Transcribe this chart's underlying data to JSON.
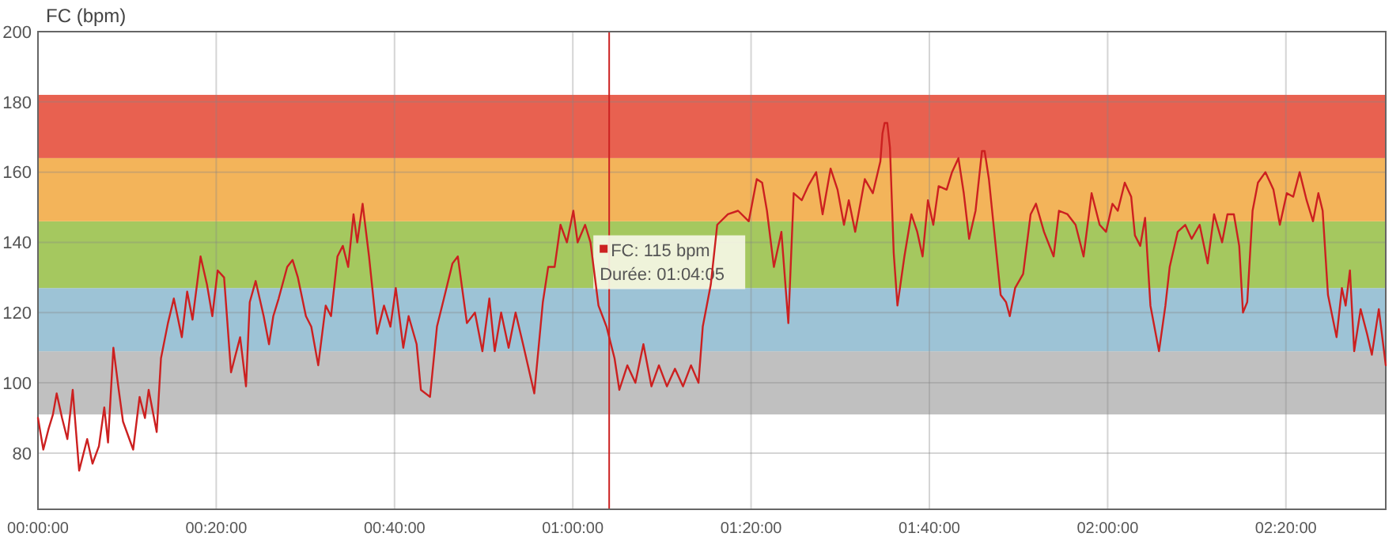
{
  "chart_data": {
    "type": "line",
    "ylabel": "FC (bpm)",
    "xlim": [
      0,
      2.52
    ],
    "ylim": [
      64,
      200
    ],
    "xticks": [
      {
        "value": 0,
        "label": "00:00:00"
      },
      {
        "value": 0.3333,
        "label": "00:20:00"
      },
      {
        "value": 0.6667,
        "label": "00:40:00"
      },
      {
        "value": 1,
        "label": "01:00:00"
      },
      {
        "value": 1.3333,
        "label": "01:20:00"
      },
      {
        "value": 1.6667,
        "label": "01:40:00"
      },
      {
        "value": 2,
        "label": "02:00:00"
      },
      {
        "value": 2.3333,
        "label": "02:20:00"
      }
    ],
    "yticks": [
      80,
      100,
      120,
      140,
      160,
      180,
      200
    ],
    "grid": true,
    "marker": "none",
    "line_style": "solid",
    "bands": [
      {
        "axis": "y",
        "from": 91,
        "to": 109,
        "color": "#c0c0c0"
      },
      {
        "axis": "y",
        "from": 109,
        "to": 127,
        "color": "#9dc3d6"
      },
      {
        "axis": "y",
        "from": 127,
        "to": 146,
        "color": "#a5c85f"
      },
      {
        "axis": "y",
        "from": 146,
        "to": 164,
        "color": "#f3b45a"
      },
      {
        "axis": "y",
        "from": 164,
        "to": 182,
        "color": "#e86150"
      }
    ],
    "ref_lines": [
      {
        "axis": "x",
        "value": 1.068,
        "color": "#cc2222",
        "line_style": "solid"
      }
    ],
    "annotations": [
      "FC: 115 bpm",
      "Durée: 01:04:05"
    ],
    "series": [
      {
        "color": "#cc2020",
        "x": [
          0,
          0.01,
          0.02,
          0.028,
          0.035,
          0.045,
          0.055,
          0.065,
          0.077,
          0.092,
          0.102,
          0.114,
          0.124,
          0.131,
          0.141,
          0.151,
          0.159,
          0.178,
          0.19,
          0.2,
          0.207,
          0.222,
          0.23,
          0.243,
          0.254,
          0.269,
          0.279,
          0.289,
          0.304,
          0.316,
          0.326,
          0.336,
          0.348,
          0.361,
          0.378,
          0.389,
          0.396,
          0.407,
          0.422,
          0.432,
          0.44,
          0.45,
          0.466,
          0.476,
          0.486,
          0.501,
          0.511,
          0.524,
          0.538,
          0.548,
          0.56,
          0.57,
          0.58,
          0.59,
          0.597,
          0.607,
          0.619,
          0.634,
          0.647,
          0.659,
          0.669,
          0.683,
          0.693,
          0.708,
          0.716,
          0.733,
          0.746,
          0.759,
          0.775,
          0.785,
          0.802,
          0.817,
          0.831,
          0.844,
          0.854,
          0.866,
          0.88,
          0.893,
          0.907,
          0.928,
          0.944,
          0.954,
          0.966,
          0.977,
          0.989,
          1.001,
          1.009,
          1.023,
          1.033,
          1.048,
          1.063,
          1.078,
          1.087,
          1.102,
          1.117,
          1.132,
          1.147,
          1.161,
          1.176,
          1.191,
          1.206,
          1.221,
          1.235,
          1.243,
          1.258,
          1.27,
          1.29,
          1.309,
          1.329,
          1.344,
          1.354,
          1.363,
          1.376,
          1.39,
          1.403,
          1.413,
          1.428,
          1.44,
          1.455,
          1.467,
          1.482,
          1.495,
          1.507,
          1.516,
          1.528,
          1.546,
          1.561,
          1.575,
          1.579,
          1.583,
          1.588,
          1.593,
          1.6,
          1.607,
          1.62,
          1.633,
          1.644,
          1.654,
          1.664,
          1.674,
          1.684,
          1.699,
          1.709,
          1.721,
          1.731,
          1.741,
          1.753,
          1.765,
          1.77,
          1.778,
          1.79,
          1.8,
          1.81,
          1.817,
          1.827,
          1.842,
          1.856,
          1.866,
          1.881,
          1.899,
          1.909,
          1.925,
          1.94,
          1.955,
          1.97,
          1.985,
          1.997,
          2.009,
          2.019,
          2.032,
          2.044,
          2.051,
          2.061,
          2.07,
          2.08,
          2.096,
          2.108,
          2.116,
          2.131,
          2.145,
          2.157,
          2.172,
          2.187,
          2.199,
          2.214,
          2.224,
          2.236,
          2.246,
          2.253,
          2.261,
          2.271,
          2.281,
          2.295,
          2.31,
          2.322,
          2.335,
          2.347,
          2.359,
          2.372,
          2.384,
          2.394,
          2.402,
          2.412,
          2.428,
          2.438,
          2.445,
          2.453,
          2.461,
          2.473,
          2.485,
          2.494,
          2.507,
          2.52
        ],
        "values": [
          90,
          81,
          87,
          91,
          97,
          90,
          84,
          98,
          75,
          84,
          77,
          82,
          93,
          83,
          110,
          98,
          89,
          81,
          96,
          90,
          98,
          86,
          107,
          117,
          124,
          113,
          126,
          118,
          136,
          128,
          119,
          132,
          130,
          103,
          113,
          99,
          123,
          129,
          119,
          111,
          119,
          124,
          133,
          135,
          130,
          119,
          116,
          105,
          122,
          119,
          136,
          139,
          133,
          148,
          140,
          151,
          136,
          114,
          122,
          116,
          127,
          110,
          119,
          111,
          98,
          96,
          116,
          124,
          134,
          136,
          117,
          120,
          109,
          124,
          109,
          120,
          110,
          120,
          111,
          97,
          123,
          133,
          133,
          145,
          140,
          149,
          140,
          145,
          140,
          122,
          116,
          107,
          98,
          105,
          100,
          111,
          99,
          105,
          99,
          104,
          99,
          105,
          100,
          116,
          128,
          145,
          148,
          149,
          146,
          158,
          157,
          149,
          133,
          143,
          117,
          154,
          152,
          156,
          160,
          148,
          161,
          155,
          145,
          152,
          143,
          158,
          154,
          163,
          171,
          174,
          174,
          167,
          137,
          122,
          136,
          148,
          143,
          136,
          152,
          145,
          156,
          155,
          160,
          164,
          154,
          141,
          149,
          166,
          166,
          158,
          140,
          125,
          123,
          119,
          127,
          131,
          148,
          151,
          143,
          136,
          149,
          148,
          145,
          136,
          154,
          145,
          143,
          151,
          149,
          157,
          153,
          142,
          139,
          147,
          122,
          109,
          122,
          133,
          143,
          145,
          141,
          145,
          134,
          148,
          140,
          148,
          148,
          139,
          120,
          123,
          149,
          157,
          160,
          155,
          145,
          154,
          153,
          160,
          152,
          146,
          154,
          149,
          125,
          113,
          127,
          122,
          132,
          109,
          121,
          114,
          108,
          121,
          105
        ]
      }
    ]
  }
}
